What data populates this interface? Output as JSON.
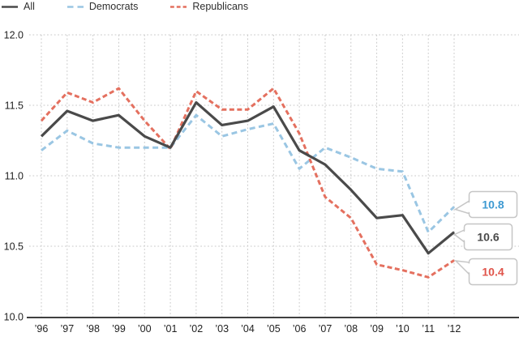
{
  "chart_data": {
    "type": "line",
    "x_labels": [
      "’96",
      "’97",
      "’98",
      "’99",
      "’00",
      "’01",
      "’02",
      "’03",
      "’04",
      "’05",
      "’06",
      "’07",
      "’08",
      "’09",
      "’10",
      "’11",
      "’12"
    ],
    "ylim": [
      10.0,
      12.0
    ],
    "yticks": {
      "values": [
        12.0,
        11.5,
        11.0,
        10.5,
        10.0
      ],
      "labels": [
        "12.0",
        "11.5",
        "11.0",
        "10.5",
        "10.0"
      ]
    },
    "grid": true,
    "legend_position": "top-left",
    "series": [
      {
        "name": "All",
        "color": "#4a4a4a",
        "style": "solid",
        "dash": "",
        "values": [
          11.28,
          11.46,
          11.39,
          11.43,
          11.28,
          11.2,
          11.52,
          11.36,
          11.39,
          11.49,
          11.18,
          11.08,
          10.9,
          10.7,
          10.72,
          10.45,
          10.6
        ],
        "end_label": "10.6",
        "end_label_color": "#4a4a4a"
      },
      {
        "name": "Democrats",
        "color": "#9ac6e3",
        "style": "dashed",
        "dash": "7 4.5",
        "values": [
          11.18,
          11.32,
          11.23,
          11.2,
          11.2,
          11.2,
          11.43,
          11.28,
          11.33,
          11.37,
          11.05,
          11.2,
          11.13,
          11.05,
          11.03,
          10.6,
          10.78
        ],
        "end_label": "10.8",
        "end_label_color": "#3e9ad2"
      },
      {
        "name": "Republicans",
        "color": "#e4705f",
        "style": "dashed",
        "dash": "6 3.5",
        "values": [
          11.39,
          11.59,
          11.52,
          11.62,
          11.39,
          11.19,
          11.6,
          11.47,
          11.47,
          11.62,
          11.3,
          10.85,
          10.7,
          10.37,
          10.33,
          10.28,
          10.4
        ],
        "end_label": "10.4",
        "end_label_color": "#e0544a"
      }
    ],
    "colors": {
      "grid": "#c9c9c9",
      "axis": "#3f3f3f",
      "tick_text": "#1f1f1f",
      "callout_border": "#c6c6c6",
      "callout_bg": "#ffffff"
    }
  }
}
